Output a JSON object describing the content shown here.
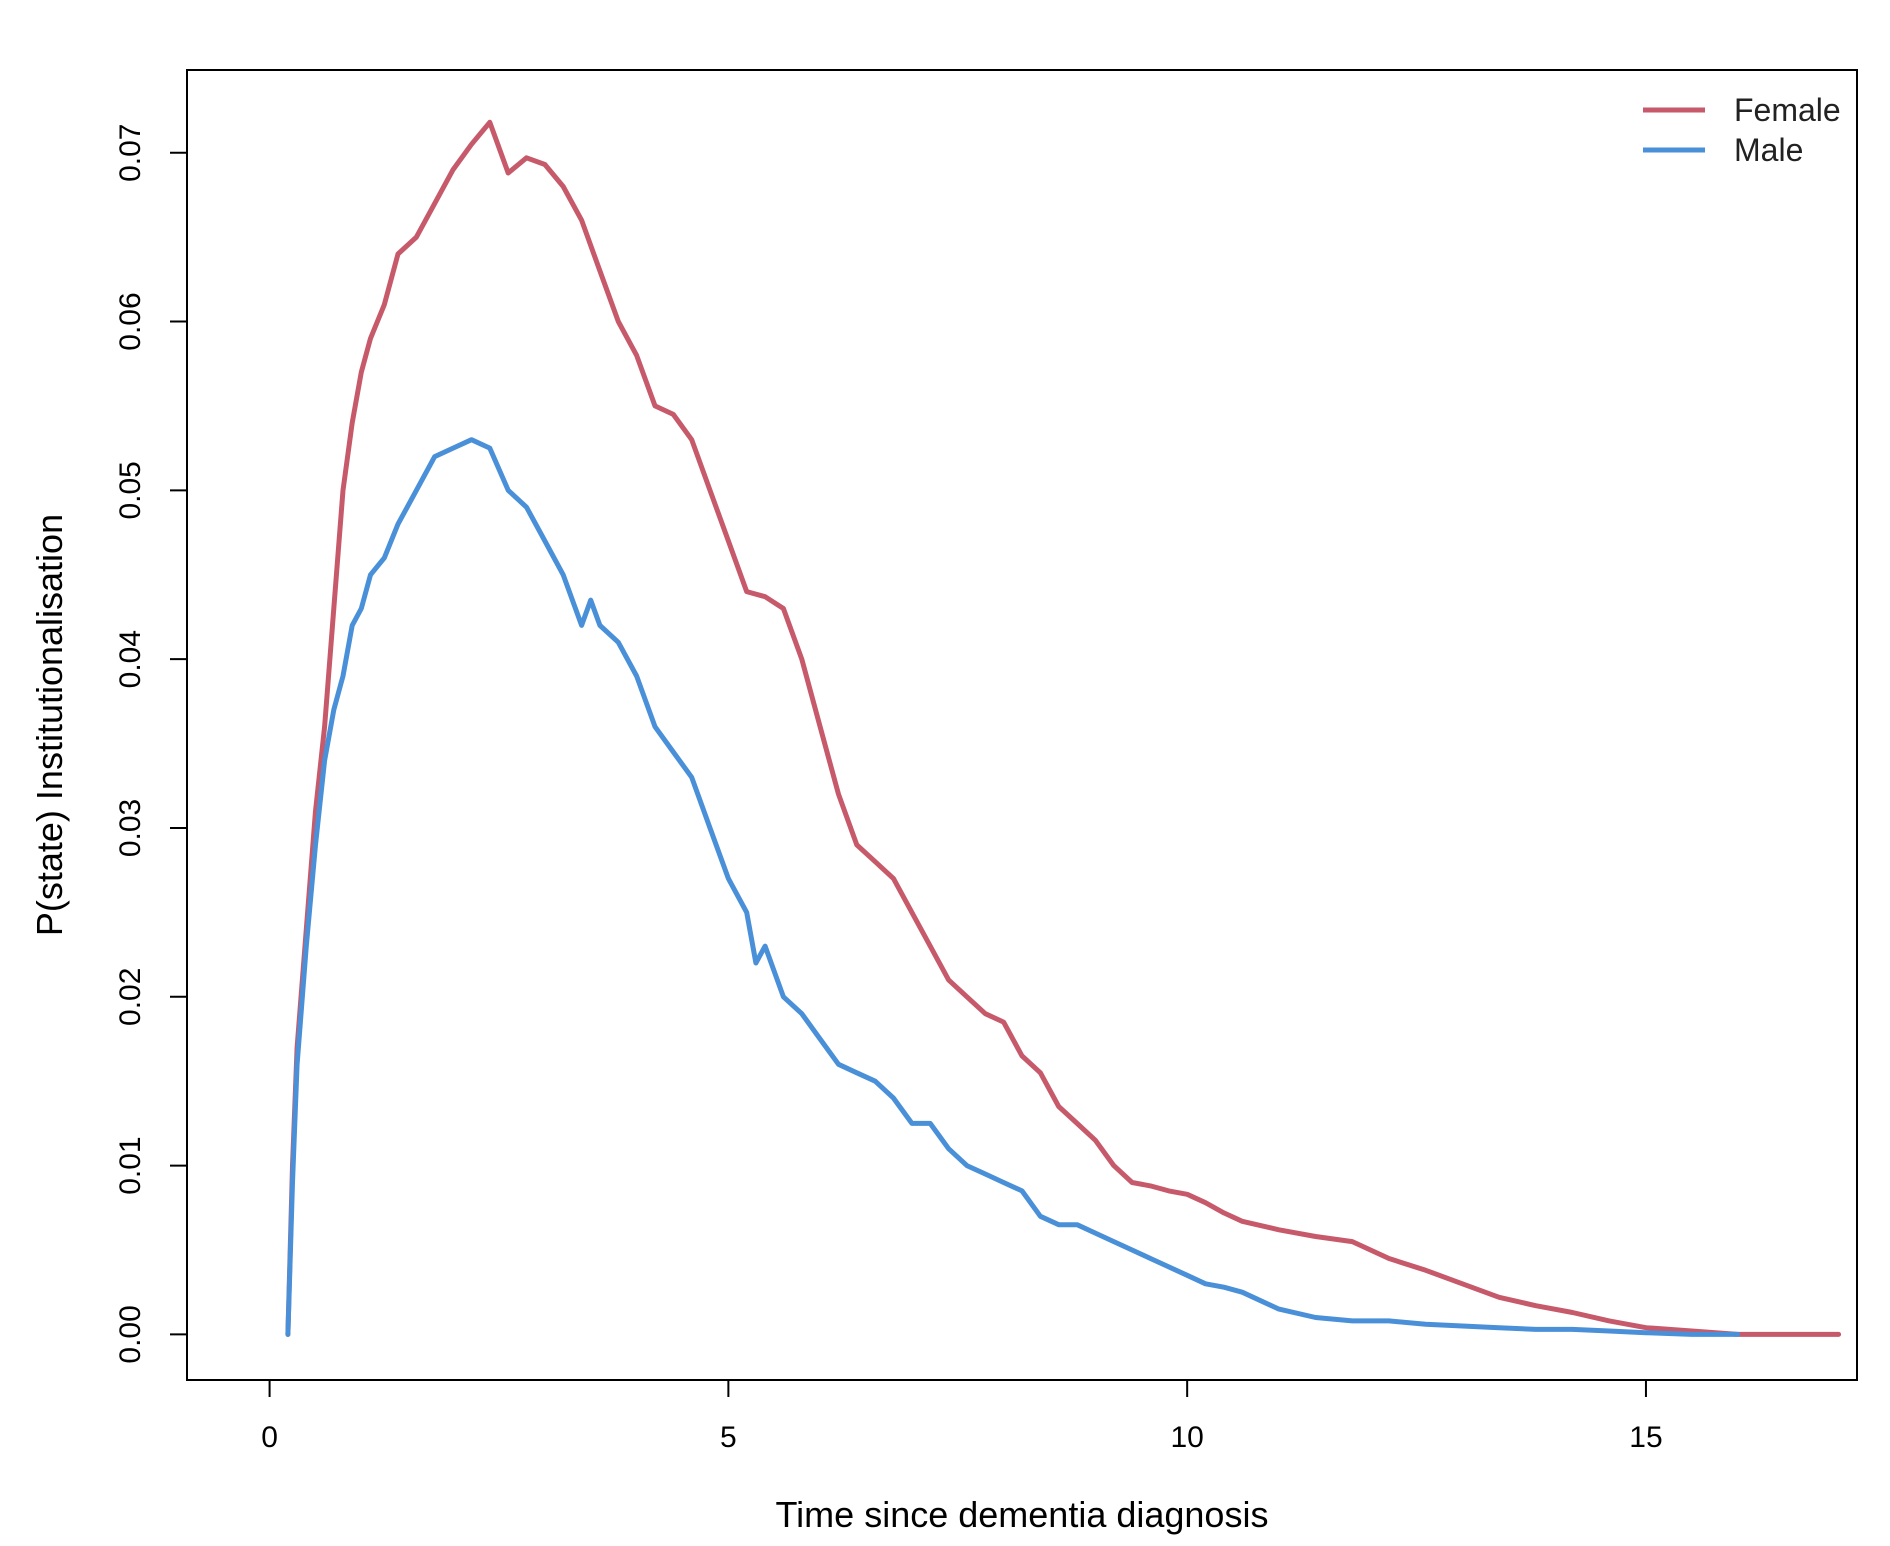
{
  "chart_data": {
    "type": "line",
    "xlabel": "Time since dementia diagnosis",
    "ylabel": "P(state) Institutionalisation",
    "xlim": [
      -0.9,
      17.3
    ],
    "ylim": [
      -0.0027,
      0.0749
    ],
    "x_ticks": [
      0,
      5,
      10,
      15
    ],
    "y_ticks": [
      0.0,
      0.01,
      0.02,
      0.03,
      0.04,
      0.05,
      0.06,
      0.07
    ],
    "y_tick_labels": [
      "0.00",
      "0.01",
      "0.02",
      "0.03",
      "0.04",
      "0.05",
      "0.06",
      "0.07"
    ],
    "grid": false,
    "legend_position": "top-right",
    "series": [
      {
        "name": "Female",
        "color": "#C75A6A",
        "points": [
          [
            0.2,
            0.0
          ],
          [
            0.25,
            0.01
          ],
          [
            0.3,
            0.017
          ],
          [
            0.4,
            0.024
          ],
          [
            0.5,
            0.031
          ],
          [
            0.6,
            0.036
          ],
          [
            0.7,
            0.043
          ],
          [
            0.8,
            0.05
          ],
          [
            0.9,
            0.054
          ],
          [
            1.0,
            0.057
          ],
          [
            1.1,
            0.059
          ],
          [
            1.25,
            0.061
          ],
          [
            1.4,
            0.064
          ],
          [
            1.6,
            0.065
          ],
          [
            1.8,
            0.067
          ],
          [
            2.0,
            0.069
          ],
          [
            2.2,
            0.0705
          ],
          [
            2.4,
            0.0718
          ],
          [
            2.6,
            0.0688
          ],
          [
            2.8,
            0.0697
          ],
          [
            3.0,
            0.0693
          ],
          [
            3.2,
            0.068
          ],
          [
            3.4,
            0.066
          ],
          [
            3.6,
            0.063
          ],
          [
            3.8,
            0.06
          ],
          [
            4.0,
            0.058
          ],
          [
            4.2,
            0.055
          ],
          [
            4.4,
            0.0545
          ],
          [
            4.6,
            0.053
          ],
          [
            4.8,
            0.05
          ],
          [
            5.0,
            0.047
          ],
          [
            5.2,
            0.044
          ],
          [
            5.4,
            0.0437
          ],
          [
            5.6,
            0.043
          ],
          [
            5.8,
            0.04
          ],
          [
            6.0,
            0.036
          ],
          [
            6.2,
            0.032
          ],
          [
            6.4,
            0.029
          ],
          [
            6.6,
            0.028
          ],
          [
            6.8,
            0.027
          ],
          [
            7.0,
            0.025
          ],
          [
            7.2,
            0.023
          ],
          [
            7.4,
            0.021
          ],
          [
            7.6,
            0.02
          ],
          [
            7.8,
            0.019
          ],
          [
            8.0,
            0.0185
          ],
          [
            8.2,
            0.0165
          ],
          [
            8.4,
            0.0155
          ],
          [
            8.6,
            0.0135
          ],
          [
            8.8,
            0.0125
          ],
          [
            9.0,
            0.0115
          ],
          [
            9.2,
            0.01
          ],
          [
            9.4,
            0.009
          ],
          [
            9.6,
            0.0088
          ],
          [
            9.8,
            0.0085
          ],
          [
            10.0,
            0.0083
          ],
          [
            10.2,
            0.0078
          ],
          [
            10.4,
            0.0072
          ],
          [
            10.6,
            0.0067
          ],
          [
            11.0,
            0.0062
          ],
          [
            11.4,
            0.0058
          ],
          [
            11.8,
            0.0055
          ],
          [
            12.2,
            0.0045
          ],
          [
            12.6,
            0.0038
          ],
          [
            13.0,
            0.003
          ],
          [
            13.4,
            0.0022
          ],
          [
            13.8,
            0.0017
          ],
          [
            14.2,
            0.0013
          ],
          [
            14.6,
            0.0008
          ],
          [
            15.0,
            0.0004
          ],
          [
            15.5,
            0.0002
          ],
          [
            16.0,
            0.0
          ],
          [
            16.5,
            0.0
          ],
          [
            17.1,
            0.0
          ]
        ]
      },
      {
        "name": "Male",
        "color": "#4A90D9",
        "points": [
          [
            0.2,
            0.0
          ],
          [
            0.25,
            0.009
          ],
          [
            0.3,
            0.016
          ],
          [
            0.4,
            0.023
          ],
          [
            0.5,
            0.029
          ],
          [
            0.6,
            0.034
          ],
          [
            0.7,
            0.037
          ],
          [
            0.8,
            0.039
          ],
          [
            0.9,
            0.042
          ],
          [
            1.0,
            0.043
          ],
          [
            1.1,
            0.045
          ],
          [
            1.25,
            0.046
          ],
          [
            1.4,
            0.048
          ],
          [
            1.6,
            0.05
          ],
          [
            1.8,
            0.052
          ],
          [
            2.0,
            0.0525
          ],
          [
            2.2,
            0.053
          ],
          [
            2.4,
            0.0525
          ],
          [
            2.6,
            0.05
          ],
          [
            2.8,
            0.049
          ],
          [
            3.0,
            0.047
          ],
          [
            3.2,
            0.045
          ],
          [
            3.4,
            0.042
          ],
          [
            3.5,
            0.0435
          ],
          [
            3.6,
            0.042
          ],
          [
            3.8,
            0.041
          ],
          [
            4.0,
            0.039
          ],
          [
            4.2,
            0.036
          ],
          [
            4.4,
            0.0345
          ],
          [
            4.6,
            0.033
          ],
          [
            4.8,
            0.03
          ],
          [
            5.0,
            0.027
          ],
          [
            5.2,
            0.025
          ],
          [
            5.3,
            0.022
          ],
          [
            5.4,
            0.023
          ],
          [
            5.6,
            0.02
          ],
          [
            5.8,
            0.019
          ],
          [
            6.0,
            0.0175
          ],
          [
            6.2,
            0.016
          ],
          [
            6.4,
            0.0155
          ],
          [
            6.6,
            0.015
          ],
          [
            6.8,
            0.014
          ],
          [
            7.0,
            0.0125
          ],
          [
            7.2,
            0.0125
          ],
          [
            7.4,
            0.011
          ],
          [
            7.6,
            0.01
          ],
          [
            7.8,
            0.0095
          ],
          [
            8.0,
            0.009
          ],
          [
            8.2,
            0.0085
          ],
          [
            8.4,
            0.007
          ],
          [
            8.6,
            0.0065
          ],
          [
            8.8,
            0.0065
          ],
          [
            9.0,
            0.006
          ],
          [
            9.2,
            0.0055
          ],
          [
            9.4,
            0.005
          ],
          [
            9.6,
            0.0045
          ],
          [
            9.8,
            0.004
          ],
          [
            10.0,
            0.0035
          ],
          [
            10.2,
            0.003
          ],
          [
            10.4,
            0.0028
          ],
          [
            10.6,
            0.0025
          ],
          [
            10.8,
            0.002
          ],
          [
            11.0,
            0.0015
          ],
          [
            11.4,
            0.001
          ],
          [
            11.8,
            0.0008
          ],
          [
            12.2,
            0.0008
          ],
          [
            12.6,
            0.0006
          ],
          [
            13.0,
            0.0005
          ],
          [
            13.4,
            0.0004
          ],
          [
            13.8,
            0.0003
          ],
          [
            14.2,
            0.0003
          ],
          [
            14.6,
            0.0002
          ],
          [
            15.0,
            0.0001
          ],
          [
            15.5,
            0.0
          ],
          [
            16.0,
            0.0
          ]
        ]
      }
    ]
  }
}
